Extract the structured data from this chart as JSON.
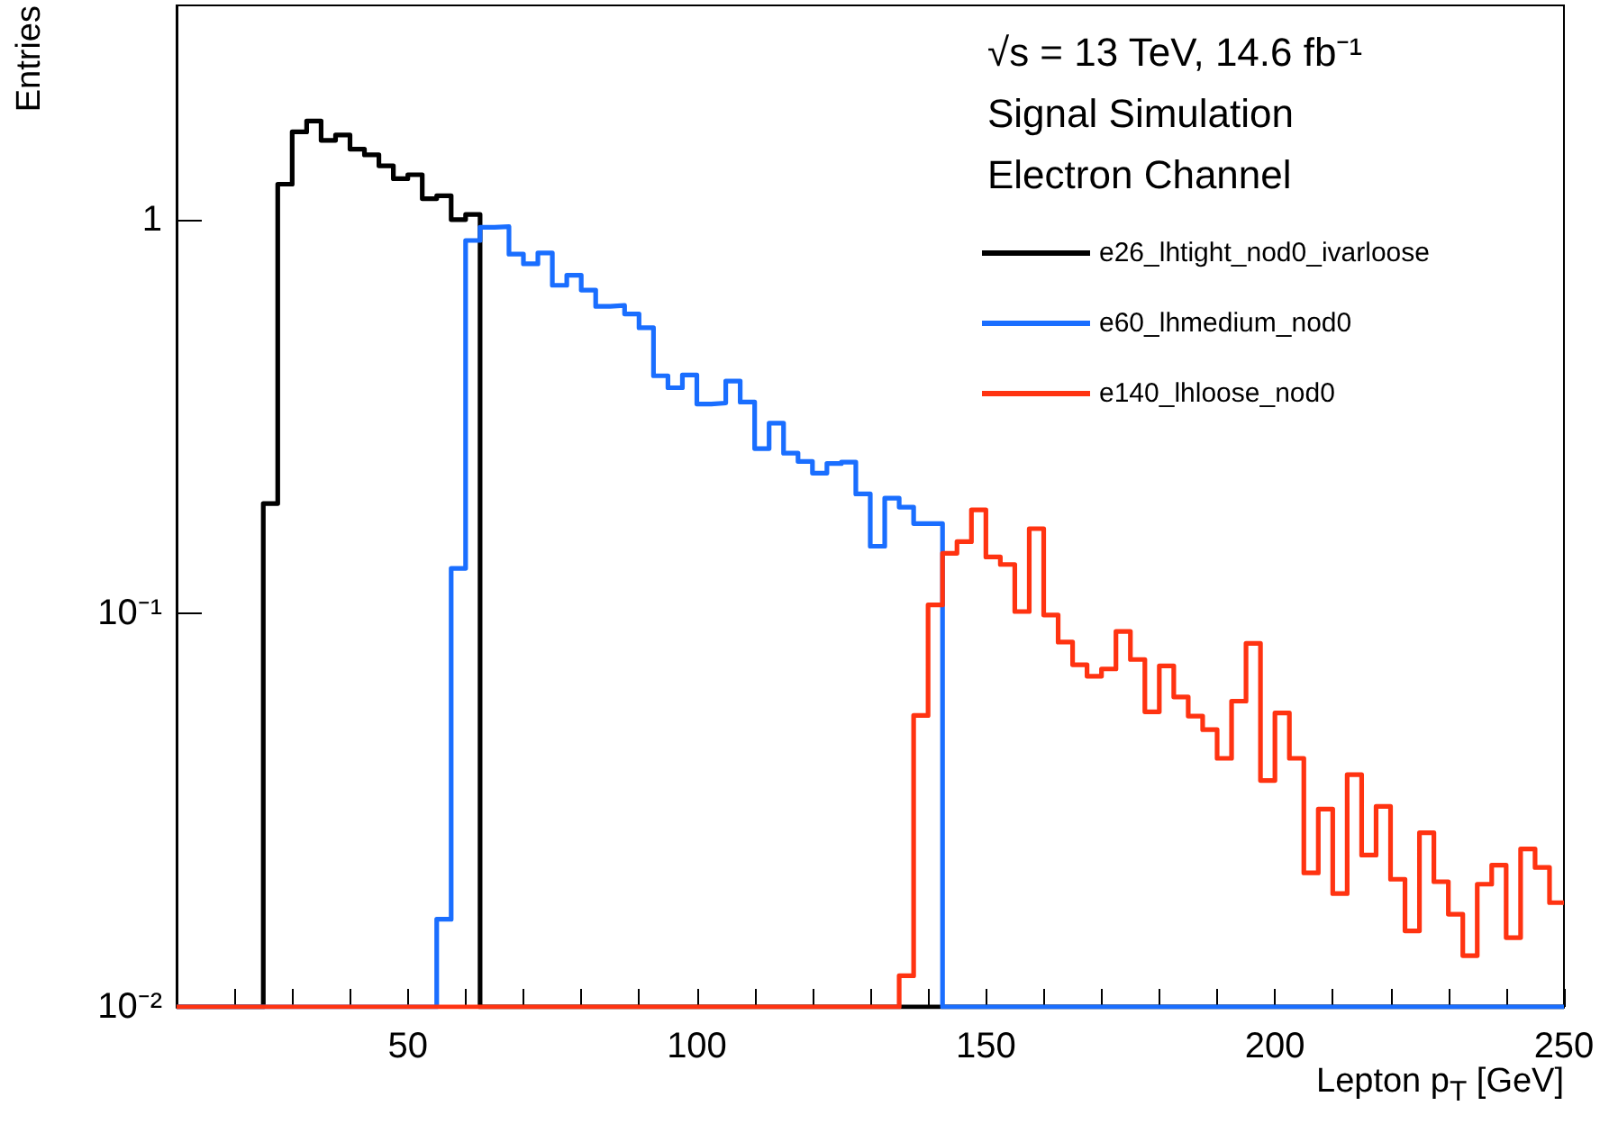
{
  "chart_data": {
    "type": "histogram",
    "xlabel": "Lepton p$_{T}$ [GeV]",
    "ylabel": "Entries",
    "annotations": [
      "√s = 13 TeV, 14.6 fb⁻¹",
      "Signal Simulation",
      "Electron Channel"
    ],
    "log": "y",
    "grid": false,
    "legend": "top right",
    "line_style": "solid",
    "marker": "none",
    "xlim": [
      10,
      250
    ],
    "ylim": [
      0.01,
      3.5
    ],
    "xticks": [
      {
        "value": 20,
        "label": null
      },
      {
        "value": 30,
        "label": null
      },
      {
        "value": 40,
        "label": null
      },
      50,
      {
        "value": 60,
        "label": null
      },
      {
        "value": 70,
        "label": null
      },
      {
        "value": 80,
        "label": null
      },
      {
        "value": 90,
        "label": null
      },
      100,
      {
        "value": 110,
        "label": null
      },
      {
        "value": 120,
        "label": null
      },
      {
        "value": 130,
        "label": null
      },
      {
        "value": 140,
        "label": null
      },
      150,
      {
        "value": 160,
        "label": null
      },
      {
        "value": 170,
        "label": null
      },
      {
        "value": 180,
        "label": null
      },
      {
        "value": 190,
        "label": null
      },
      200,
      {
        "value": 210,
        "label": null
      },
      {
        "value": 220,
        "label": null
      },
      {
        "value": 230,
        "label": null
      },
      {
        "value": 240,
        "label": null
      },
      250
    ],
    "yticks": [
      {
        "value": 0.01,
        "label": "10⁻²"
      },
      {
        "value": 0.1,
        "label": "10⁻¹"
      },
      1
    ],
    "bins": [
      10,
      12.5,
      15,
      17.5,
      20,
      22.5,
      25,
      27.5,
      30,
      32.5,
      35,
      37.5,
      40,
      42.5,
      45,
      47.5,
      50,
      52.5,
      55,
      57.5,
      60,
      62.5,
      65,
      67.5,
      70,
      72.5,
      75,
      77.5,
      80,
      82.5,
      85,
      87.5,
      90,
      92.5,
      95,
      97.5,
      100,
      102.5,
      105,
      107.5,
      110,
      112.5,
      115,
      117.5,
      120,
      122.5,
      125,
      127.5,
      130,
      132.5,
      135,
      137.5,
      140,
      142.5,
      145,
      147.5,
      150,
      152.5,
      155,
      157.5,
      160,
      162.5,
      165,
      167.5,
      170,
      172.5,
      175,
      177.5,
      180,
      182.5,
      185,
      187.5,
      190,
      192.5,
      195,
      197.5,
      200,
      202.5,
      205,
      207.5,
      210,
      212.5,
      215,
      217.5,
      220,
      222.5,
      225,
      227.5,
      230,
      232.5,
      235,
      237.5,
      240,
      242.5,
      245,
      247.5,
      250
    ],
    "series": [
      {
        "name": "e26_lhtight_nod0_ivarloose",
        "color": "#000000",
        "values": [
          null,
          null,
          null,
          null,
          null,
          null,
          0.19,
          1.23,
          1.67,
          1.78,
          1.59,
          1.64,
          1.51,
          1.46,
          1.37,
          1.27,
          1.3,
          1.13,
          1.15,
          1.0,
          1.03,
          null,
          null,
          null,
          null,
          null,
          null,
          null,
          null,
          null,
          null,
          null,
          null,
          null,
          null,
          null,
          null,
          null,
          null,
          null,
          null,
          null,
          null,
          null,
          null,
          null,
          null,
          null,
          null,
          null,
          null,
          null,
          null,
          null,
          null,
          null,
          null,
          null,
          null,
          null,
          null,
          null,
          null,
          null,
          null,
          null,
          null,
          null,
          null,
          null,
          null,
          null,
          null,
          null,
          null,
          null,
          null,
          null,
          null,
          null,
          null,
          null,
          null,
          null,
          null,
          null,
          null,
          null,
          null,
          null,
          null,
          null,
          null,
          null,
          null,
          null
        ]
      },
      {
        "name": "e60_lhmedium_nod0",
        "color": "#1a6eff",
        "values": [
          null,
          null,
          null,
          null,
          null,
          null,
          null,
          null,
          null,
          null,
          null,
          null,
          null,
          null,
          null,
          null,
          null,
          null,
          0.0167,
          0.13,
          0.885,
          0.956,
          0.96,
          0.817,
          0.772,
          0.823,
          0.681,
          0.722,
          0.662,
          0.602,
          0.605,
          0.576,
          0.531,
          0.401,
          0.374,
          0.403,
          0.34,
          0.342,
          0.389,
          0.344,
          0.262,
          0.304,
          0.255,
          0.243,
          0.227,
          0.24,
          0.242,
          0.201,
          0.148,
          0.196,
          0.186,
          0.169,
          0.169,
          null,
          null,
          null,
          null,
          null,
          null,
          null,
          null,
          null,
          null,
          null,
          null,
          null,
          null,
          null,
          null,
          null,
          null,
          null,
          null,
          null,
          null,
          null,
          null,
          null,
          null,
          null,
          null,
          null,
          null,
          null,
          null,
          null,
          null,
          null,
          null,
          null,
          null,
          null,
          null,
          null,
          null,
          null
        ]
      },
      {
        "name": "e140_lhloose_nod0",
        "color": "#ff3311",
        "values": [
          null,
          null,
          null,
          null,
          null,
          null,
          null,
          null,
          null,
          null,
          null,
          null,
          null,
          null,
          null,
          null,
          null,
          null,
          null,
          null,
          null,
          null,
          null,
          null,
          null,
          null,
          null,
          null,
          null,
          null,
          null,
          null,
          null,
          null,
          null,
          null,
          null,
          null,
          null,
          null,
          null,
          null,
          null,
          null,
          null,
          null,
          null,
          null,
          null,
          null,
          0.012,
          0.055,
          0.105,
          0.142,
          0.152,
          0.183,
          0.139,
          0.133,
          0.101,
          0.164,
          0.099,
          0.0845,
          0.074,
          0.0692,
          0.0722,
          0.0899,
          0.0763,
          0.0562,
          0.0735,
          0.0613,
          0.0548,
          0.0506,
          0.0428,
          0.0598,
          0.0838,
          0.0376,
          0.0558,
          0.0428,
          0.0219,
          0.0318,
          0.0194,
          0.0389,
          0.0243,
          0.0323,
          0.0211,
          0.0156,
          0.0277,
          0.0208,
          0.0172,
          0.0135,
          0.0205,
          0.0229,
          0.015,
          0.0252,
          0.0226,
          0.0184
        ]
      }
    ]
  }
}
